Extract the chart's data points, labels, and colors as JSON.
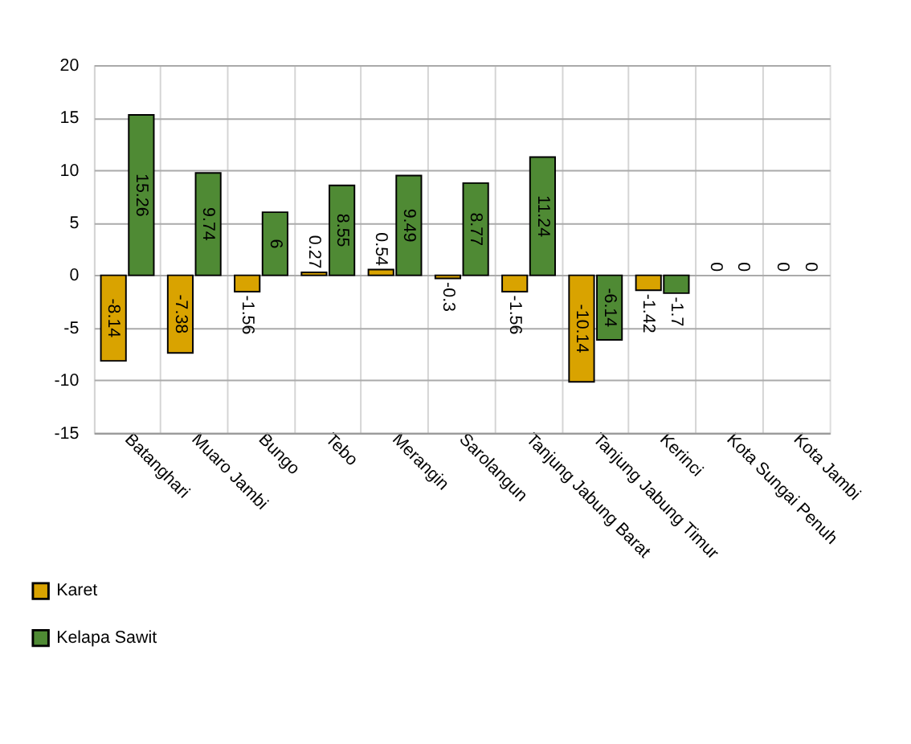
{
  "chart_data": {
    "type": "bar",
    "categories": [
      "Batanghari",
      "Muaro Jambi",
      "Bungo",
      "Tebo",
      "Merangin",
      "Sarolangun",
      "Tanjung Jabung Barat",
      "Tanjung Jabung Timur",
      "Kerinci",
      "Kota Sungai Penuh",
      "Kota Jambi"
    ],
    "series": [
      {
        "name": "Karet",
        "color": "#d9a300",
        "values": [
          -8.14,
          -7.38,
          -1.56,
          0.27,
          0.54,
          -0.3,
          -1.56,
          -10.14,
          -1.42,
          0,
          0
        ]
      },
      {
        "name": "Kelapa Sawit",
        "color": "#4f8a34",
        "values": [
          15.26,
          9.74,
          6,
          8.55,
          9.49,
          8.77,
          11.24,
          -6.14,
          -1.7,
          0,
          0
        ]
      }
    ],
    "ylim": [
      -15,
      20
    ],
    "yticks": [
      -15,
      -10,
      -5,
      0,
      5,
      10,
      15,
      20
    ],
    "grid": true,
    "legend": "bottom left",
    "data_labels": true
  }
}
